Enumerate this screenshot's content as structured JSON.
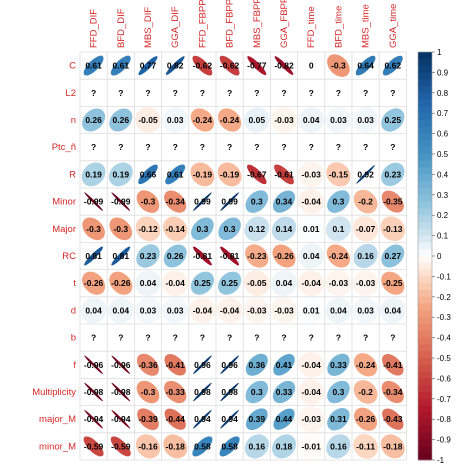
{
  "chart_data": {
    "type": "heatmap",
    "glyph": "ellipse",
    "columns": [
      "FFD_DIF",
      "BFD_DIF",
      "MBS_DIF",
      "GGA_DIF",
      "FFD_FBPP",
      "BFD_FBPP",
      "MBS_FBPP",
      "GGA_FBPP",
      "FFD_time",
      "BFD_time",
      "MBS_time",
      "GGA_time"
    ],
    "rows": [
      "C",
      "L2",
      "n",
      "Ptc_ñ",
      "R",
      "Minor",
      "Major",
      "RC",
      "t",
      "d",
      "b",
      "f",
      "Multiplicity",
      "major_M",
      "minor_M"
    ],
    "values": [
      [
        0.61,
        0.61,
        0.77,
        0.82,
        -0.62,
        -0.62,
        -0.77,
        -0.82,
        0,
        -0.3,
        0.64,
        0.62
      ],
      [
        null,
        null,
        null,
        null,
        null,
        null,
        null,
        null,
        null,
        null,
        null,
        null
      ],
      [
        0.26,
        0.26,
        -0.05,
        0.03,
        -0.24,
        -0.24,
        0.05,
        -0.03,
        0.04,
        0.03,
        0.03,
        0.25
      ],
      [
        null,
        null,
        null,
        null,
        null,
        null,
        null,
        null,
        null,
        null,
        null,
        null
      ],
      [
        0.19,
        0.19,
        0.66,
        0.61,
        -0.19,
        -0.19,
        -0.67,
        -0.61,
        -0.03,
        -0.15,
        0.92,
        0.23
      ],
      [
        -0.99,
        -0.99,
        -0.3,
        -0.34,
        0.99,
        0.99,
        0.3,
        0.34,
        -0.04,
        0.3,
        -0.2,
        -0.35
      ],
      [
        -0.3,
        -0.3,
        -0.12,
        -0.14,
        0.3,
        0.3,
        0.12,
        0.14,
        0.01,
        0.1,
        -0.07,
        -0.13
      ],
      [
        0.81,
        0.81,
        0.23,
        0.26,
        -0.81,
        -0.81,
        -0.23,
        -0.26,
        0.04,
        -0.24,
        0.16,
        0.27
      ],
      [
        -0.26,
        -0.26,
        0.04,
        -0.04,
        0.25,
        0.25,
        -0.05,
        0.04,
        -0.04,
        -0.03,
        -0.03,
        -0.25
      ],
      [
        0.04,
        0.04,
        0.03,
        0.03,
        -0.04,
        -0.04,
        -0.03,
        -0.03,
        0.01,
        0.04,
        0.03,
        0.04
      ],
      [
        null,
        null,
        null,
        null,
        null,
        null,
        null,
        null,
        null,
        null,
        null,
        null
      ],
      [
        -0.96,
        -0.96,
        -0.36,
        -0.41,
        0.96,
        0.96,
        0.36,
        0.41,
        -0.04,
        0.33,
        -0.24,
        -0.41
      ],
      [
        -0.98,
        -0.98,
        -0.3,
        -0.33,
        0.98,
        0.98,
        0.3,
        0.33,
        -0.04,
        0.3,
        -0.2,
        -0.34
      ],
      [
        -0.94,
        -0.94,
        -0.39,
        -0.44,
        0.94,
        0.94,
        0.39,
        0.44,
        -0.03,
        0.31,
        -0.26,
        -0.43
      ],
      [
        -0.59,
        -0.59,
        -0.16,
        -0.18,
        0.58,
        0.58,
        0.16,
        0.18,
        -0.01,
        0.16,
        -0.11,
        -0.18
      ]
    ],
    "missing_label": "?",
    "color_scale": {
      "low": "#67001f",
      "mid": "#ffffff",
      "high": "#053061",
      "range": [
        -1,
        1
      ]
    },
    "legend_ticks": [
      "1",
      "0.9",
      "0.8",
      "0.7",
      "0.6",
      "0.5",
      "0.4",
      "0.3",
      "0.2",
      "0.1",
      "0",
      "-0.1",
      "-0.2",
      "-0.3",
      "-0.4",
      "-0.5",
      "-0.6",
      "-0.7",
      "-0.8",
      "-0.9",
      "-1"
    ],
    "legend_placement": "right",
    "grid": true
  }
}
